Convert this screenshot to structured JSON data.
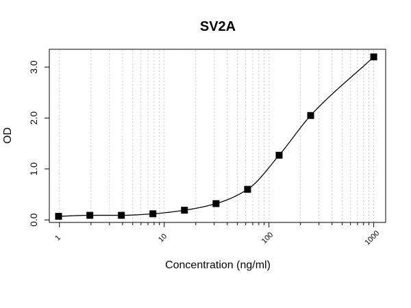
{
  "chart_data": {
    "type": "scatter",
    "title": "SV2A",
    "xlabel": "Concentration (ng/ml)",
    "ylabel": "OD",
    "x_scale": "log",
    "xlim": [
      0.8,
      1300
    ],
    "ylim": [
      -0.05,
      3.35
    ],
    "x_ticks": [
      1,
      10,
      100,
      1000
    ],
    "x_tick_labels": [
      "1",
      "10",
      "100",
      "1000"
    ],
    "y_ticks": [
      0.0,
      1.0,
      2.0,
      3.0
    ],
    "y_tick_labels": [
      "0.0",
      "1.0",
      "2.0",
      "3.0"
    ],
    "grid": "vertical dotted at log minor ticks",
    "marker": "filled square",
    "has_fit_curve": true,
    "series": [
      {
        "x": [
          0.98,
          1.95,
          3.9,
          7.8,
          15.6,
          31.25,
          62.5,
          125,
          250,
          1000
        ],
        "y": [
          0.07,
          0.09,
          0.09,
          0.12,
          0.19,
          0.32,
          0.6,
          1.27,
          2.05,
          3.2
        ]
      }
    ]
  }
}
